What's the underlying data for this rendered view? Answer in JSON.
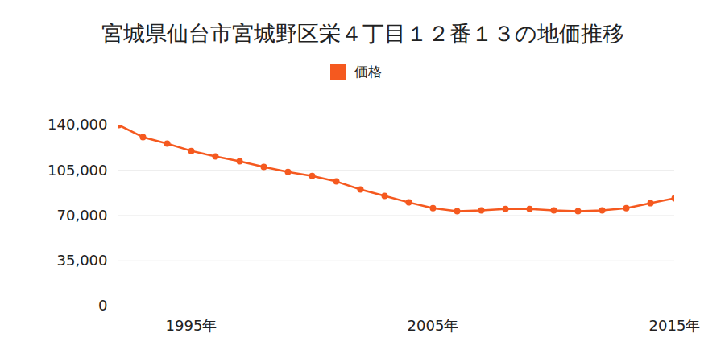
{
  "chart_data": {
    "type": "line",
    "title": "宮城県仙台市宮城野区栄４丁目１２番１３の地価推移",
    "x": [
      1992,
      1993,
      1994,
      1995,
      1996,
      1997,
      1998,
      1999,
      2000,
      2001,
      2002,
      2003,
      2004,
      2005,
      2006,
      2007,
      2008,
      2009,
      2010,
      2011,
      2012,
      2013,
      2014,
      2015
    ],
    "series": [
      {
        "name": "価格",
        "color": "#f5591f",
        "marker": "circle",
        "values": [
          140000,
          130700,
          125700,
          120000,
          115700,
          112000,
          107600,
          103800,
          100700,
          96400,
          90200,
          85200,
          80200,
          75800,
          73400,
          74000,
          75200,
          75200,
          74000,
          73400,
          74000,
          75800,
          79600,
          83400
        ]
      }
    ],
    "xlim": [
      1992,
      2015
    ],
    "xticks": [
      {
        "value": 1995,
        "label": "1995年"
      },
      {
        "value": 2005,
        "label": "2005年"
      },
      {
        "value": 2015,
        "label": "2015年"
      }
    ],
    "ylim": [
      0,
      140000
    ],
    "yticks": [
      0,
      {
        "value": 35000,
        "label": "35,000"
      },
      {
        "value": 70000,
        "label": "70,000"
      },
      {
        "value": 105000,
        "label": "105,000"
      },
      {
        "value": 140000,
        "label": "140,000"
      }
    ],
    "grid": true,
    "legend": "top"
  }
}
